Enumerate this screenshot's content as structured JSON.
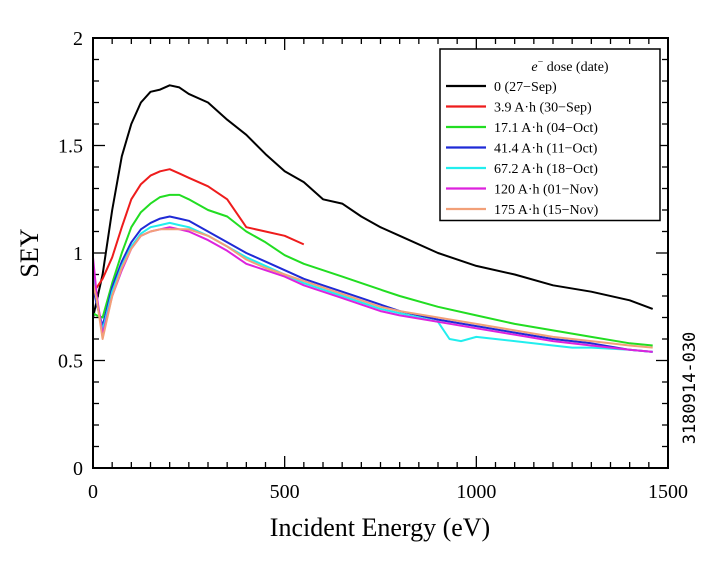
{
  "chart_data": {
    "type": "line",
    "title": "",
    "xlabel": "Incident Energy (eV)",
    "ylabel": "SEY",
    "xlim": [
      0,
      1500
    ],
    "ylim": [
      0,
      2
    ],
    "xticks": [
      0,
      500,
      1000,
      1500
    ],
    "xtick_labels": [
      "0",
      "500",
      "1000",
      "1500"
    ],
    "yticks": [
      0,
      0.5,
      1,
      1.5,
      2
    ],
    "ytick_labels": [
      "0",
      "0.5",
      "1",
      "1.5",
      "2"
    ],
    "grid": false,
    "legend_position": "top-right",
    "legend_title": {
      "base": "e",
      "sup": "−",
      "rest": " dose (date)"
    },
    "side_label": "3180914-030",
    "series": [
      {
        "name": "0 (27−Sep)",
        "color": "#000000",
        "x": [
          0,
          10,
          25,
          50,
          75,
          100,
          125,
          150,
          175,
          200,
          225,
          250,
          300,
          350,
          400,
          450,
          500,
          550,
          600,
          650,
          700,
          750,
          800,
          900,
          1000,
          1100,
          1200,
          1300,
          1400,
          1460
        ],
        "y": [
          0.7,
          0.78,
          0.9,
          1.2,
          1.45,
          1.6,
          1.7,
          1.75,
          1.76,
          1.78,
          1.77,
          1.74,
          1.7,
          1.62,
          1.55,
          1.46,
          1.38,
          1.33,
          1.25,
          1.23,
          1.17,
          1.12,
          1.08,
          1.0,
          0.94,
          0.9,
          0.85,
          0.82,
          0.78,
          0.74
        ]
      },
      {
        "name": "3.9 A·h (30−Sep)",
        "color": "#ee1c1c",
        "x": [
          0,
          10,
          25,
          50,
          75,
          100,
          125,
          150,
          175,
          200,
          225,
          250,
          300,
          350,
          400,
          450,
          500,
          550
        ],
        "y": [
          0.82,
          0.84,
          0.88,
          0.98,
          1.12,
          1.25,
          1.32,
          1.36,
          1.38,
          1.39,
          1.37,
          1.35,
          1.31,
          1.25,
          1.12,
          1.1,
          1.08,
          1.04
        ]
      },
      {
        "name": "17.1 A·h (04−Oct)",
        "color": "#22dd22",
        "x": [
          0,
          10,
          25,
          50,
          75,
          100,
          125,
          150,
          175,
          200,
          225,
          250,
          300,
          350,
          400,
          450,
          500,
          550,
          600,
          650,
          700,
          750,
          800,
          900,
          1000,
          1100,
          1200,
          1300,
          1400,
          1460
        ],
        "y": [
          0.72,
          0.71,
          0.7,
          0.86,
          1.0,
          1.12,
          1.19,
          1.23,
          1.26,
          1.27,
          1.27,
          1.25,
          1.2,
          1.17,
          1.1,
          1.05,
          0.99,
          0.95,
          0.92,
          0.89,
          0.86,
          0.83,
          0.8,
          0.75,
          0.71,
          0.67,
          0.64,
          0.61,
          0.58,
          0.57
        ]
      },
      {
        "name": "41.4 A·h (11−Oct)",
        "color": "#1f2ad6",
        "x": [
          0,
          10,
          25,
          50,
          75,
          100,
          125,
          150,
          175,
          200,
          225,
          250,
          300,
          350,
          400,
          450,
          500,
          550,
          600,
          650,
          700,
          750,
          800,
          900,
          1000,
          1100,
          1200,
          1300,
          1400,
          1460
        ],
        "y": [
          0.84,
          0.76,
          0.66,
          0.84,
          0.96,
          1.05,
          1.11,
          1.14,
          1.16,
          1.17,
          1.16,
          1.15,
          1.1,
          1.05,
          1.0,
          0.96,
          0.92,
          0.88,
          0.85,
          0.82,
          0.79,
          0.76,
          0.73,
          0.69,
          0.66,
          0.63,
          0.6,
          0.58,
          0.55,
          0.54
        ]
      },
      {
        "name": "67.2 A·h (18−Oct)",
        "color": "#22eeee",
        "x": [
          0,
          10,
          25,
          50,
          75,
          100,
          125,
          150,
          175,
          200,
          225,
          250,
          300,
          350,
          400,
          450,
          500,
          550,
          600,
          650,
          700,
          750,
          800,
          850,
          900,
          930,
          960,
          1000,
          1050,
          1100,
          1200,
          1250,
          1300,
          1400,
          1460
        ],
        "y": [
          0.9,
          0.78,
          0.64,
          0.82,
          0.94,
          1.03,
          1.09,
          1.12,
          1.13,
          1.14,
          1.13,
          1.12,
          1.08,
          1.03,
          0.98,
          0.94,
          0.9,
          0.86,
          0.83,
          0.8,
          0.77,
          0.74,
          0.72,
          0.7,
          0.68,
          0.6,
          0.59,
          0.61,
          0.6,
          0.59,
          0.57,
          0.56,
          0.56,
          0.55,
          0.54
        ]
      },
      {
        "name": "120 A·h (01−Nov)",
        "color": "#dd22dd",
        "x": [
          0,
          10,
          25,
          50,
          75,
          100,
          125,
          150,
          175,
          200,
          225,
          250,
          300,
          350,
          400,
          450,
          500,
          550,
          600,
          650,
          700,
          750,
          800,
          900,
          1000,
          1100,
          1200,
          1300,
          1400,
          1460
        ],
        "y": [
          0.98,
          0.8,
          0.62,
          0.8,
          0.92,
          1.02,
          1.08,
          1.1,
          1.11,
          1.12,
          1.11,
          1.1,
          1.06,
          1.01,
          0.95,
          0.92,
          0.89,
          0.85,
          0.82,
          0.79,
          0.76,
          0.73,
          0.71,
          0.68,
          0.65,
          0.62,
          0.59,
          0.57,
          0.55,
          0.54
        ]
      },
      {
        "name": "175 A·h (15−Nov)",
        "color": "#f2a078",
        "x": [
          0,
          10,
          25,
          50,
          75,
          100,
          125,
          150,
          175,
          200,
          225,
          250,
          300,
          350,
          400,
          450,
          500,
          550,
          600,
          650,
          700,
          750,
          800,
          900,
          1000,
          1100,
          1200,
          1300,
          1400,
          1460
        ],
        "y": [
          0.86,
          0.78,
          0.6,
          0.8,
          0.93,
          1.02,
          1.08,
          1.1,
          1.11,
          1.11,
          1.11,
          1.11,
          1.08,
          1.03,
          0.97,
          0.93,
          0.9,
          0.87,
          0.84,
          0.81,
          0.78,
          0.75,
          0.73,
          0.7,
          0.67,
          0.64,
          0.61,
          0.59,
          0.57,
          0.56
        ]
      }
    ]
  }
}
